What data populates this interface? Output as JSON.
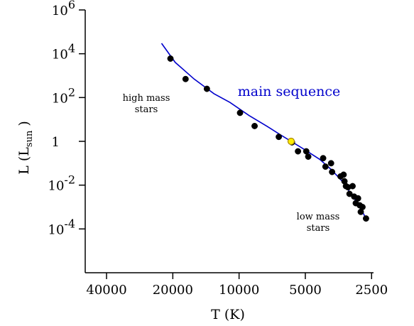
{
  "chart_data": {
    "type": "scatter",
    "title": "",
    "xlabel": "T (K)",
    "ylabel_main": "L  (L",
    "ylabel_sub": "sun",
    "ylabel_close": " )",
    "x_scale": "log (reversed)",
    "y_scale": "log",
    "xlim": [
      50000,
      2450
    ],
    "ylim": [
      1e-06,
      1000000
    ],
    "x_ticks": [
      {
        "value": 40000,
        "label": "40000"
      },
      {
        "value": 20000,
        "label": "20000"
      },
      {
        "value": 10000,
        "label": "10000"
      },
      {
        "value": 5000,
        "label": "5000"
      },
      {
        "value": 2500,
        "label": "2500"
      }
    ],
    "y_ticks": [
      {
        "value": 1000000,
        "base": "10",
        "exp": "6"
      },
      {
        "value": 10000,
        "base": "10",
        "exp": "4"
      },
      {
        "value": 100,
        "base": "10",
        "exp": "2"
      },
      {
        "value": 1,
        "base": "1",
        "exp": ""
      },
      {
        "value": 0.01,
        "base": "10",
        "exp": "-2"
      },
      {
        "value": 0.0001,
        "base": "10",
        "exp": "-4"
      }
    ],
    "series": [
      {
        "kind": "points",
        "color": "#000000",
        "points": [
          {
            "T": 20500,
            "L": 6000
          },
          {
            "T": 17500,
            "L": 700
          },
          {
            "T": 14000,
            "L": 250
          },
          {
            "T": 9900,
            "L": 20
          },
          {
            "T": 8500,
            "L": 5
          },
          {
            "T": 6600,
            "L": 1.6
          },
          {
            "T": 5750,
            "L": 0.9
          },
          {
            "T": 5400,
            "L": 0.35
          },
          {
            "T": 4950,
            "L": 0.35
          },
          {
            "T": 4850,
            "L": 0.2
          },
          {
            "T": 4150,
            "L": 0.17
          },
          {
            "T": 4050,
            "L": 0.07
          },
          {
            "T": 3820,
            "L": 0.1
          },
          {
            "T": 3780,
            "L": 0.04
          },
          {
            "T": 3460,
            "L": 0.025
          },
          {
            "T": 3350,
            "L": 0.03
          },
          {
            "T": 3320,
            "L": 0.015
          },
          {
            "T": 3270,
            "L": 0.009
          },
          {
            "T": 3200,
            "L": 0.008
          },
          {
            "T": 3150,
            "L": 0.004
          },
          {
            "T": 3050,
            "L": 0.009
          },
          {
            "T": 3000,
            "L": 0.003
          },
          {
            "T": 2950,
            "L": 0.0015
          },
          {
            "T": 2880,
            "L": 0.0025
          },
          {
            "T": 2830,
            "L": 0.0012
          },
          {
            "T": 2800,
            "L": 0.0006
          },
          {
            "T": 2750,
            "L": 0.001
          },
          {
            "T": 2650,
            "L": 0.0003
          }
        ]
      },
      {
        "kind": "points",
        "color": "#ffee00",
        "points": [
          {
            "T": 5800,
            "L": 1
          }
        ]
      },
      {
        "kind": "line",
        "color": "#0000cc",
        "points": [
          {
            "T": 22500,
            "L": 30000
          },
          {
            "T": 19500,
            "L": 4000
          },
          {
            "T": 16000,
            "L": 700
          },
          {
            "T": 13000,
            "L": 150
          },
          {
            "T": 11000,
            "L": 60
          },
          {
            "T": 9000,
            "L": 15
          },
          {
            "T": 7500,
            "L": 5
          },
          {
            "T": 6500,
            "L": 2
          },
          {
            "T": 5800,
            "L": 1
          },
          {
            "T": 5000,
            "L": 0.4
          },
          {
            "T": 4300,
            "L": 0.15
          },
          {
            "T": 3800,
            "L": 0.05
          },
          {
            "T": 3400,
            "L": 0.015
          },
          {
            "T": 3100,
            "L": 0.004
          },
          {
            "T": 2900,
            "L": 0.0015
          },
          {
            "T": 2750,
            "L": 0.0006
          },
          {
            "T": 2650,
            "L": 0.0003
          }
        ]
      }
    ],
    "annotations": [
      {
        "id": "main-sequence",
        "lines": [
          "main sequence"
        ],
        "color": "#0000cc"
      },
      {
        "id": "high-mass",
        "lines": [
          "high mass",
          "stars"
        ],
        "color": "#000000"
      },
      {
        "id": "low-mass",
        "lines": [
          "low mass",
          "stars"
        ],
        "color": "#000000"
      }
    ]
  }
}
